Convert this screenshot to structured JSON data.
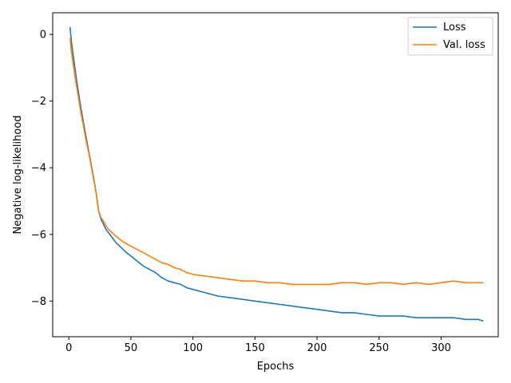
{
  "chart_data": {
    "type": "line",
    "xlabel": "Epochs",
    "ylabel": "Negative log-likelihood",
    "xlim": [
      -13,
      346
    ],
    "ylim": [
      -9.07,
      0.65
    ],
    "xticks": [
      0,
      50,
      100,
      150,
      200,
      250,
      300
    ],
    "yticks": [
      0,
      -2,
      -4,
      -6,
      -8
    ],
    "ytick_labels": [
      "0",
      "−2",
      "−4",
      "−6",
      "−8"
    ],
    "grid": false,
    "legend_position": "top-right",
    "series": [
      {
        "name": "Loss",
        "color": "#1f77b4",
        "x": [
          1,
          2,
          4,
          6,
          8,
          10,
          12,
          14,
          16,
          18,
          20,
          22,
          24,
          26,
          28,
          30,
          32,
          35,
          38,
          41,
          45,
          50,
          55,
          60,
          65,
          70,
          75,
          80,
          85,
          90,
          95,
          100,
          110,
          120,
          130,
          140,
          150,
          160,
          170,
          180,
          190,
          200,
          210,
          220,
          230,
          240,
          250,
          260,
          270,
          280,
          290,
          300,
          310,
          320,
          330,
          334
        ],
        "y": [
          0.22,
          -0.2,
          -0.75,
          -1.3,
          -1.8,
          -2.25,
          -2.7,
          -3.1,
          -3.5,
          -3.9,
          -4.3,
          -4.75,
          -5.3,
          -5.55,
          -5.7,
          -5.85,
          -5.95,
          -6.1,
          -6.25,
          -6.35,
          -6.5,
          -6.65,
          -6.8,
          -6.95,
          -7.05,
          -7.15,
          -7.3,
          -7.4,
          -7.45,
          -7.5,
          -7.6,
          -7.65,
          -7.75,
          -7.85,
          -7.9,
          -7.95,
          -8.0,
          -8.05,
          -8.1,
          -8.15,
          -8.2,
          -8.25,
          -8.3,
          -8.35,
          -8.35,
          -8.4,
          -8.45,
          -8.45,
          -8.45,
          -8.5,
          -8.5,
          -8.5,
          -8.5,
          -8.55,
          -8.55,
          -8.6
        ]
      },
      {
        "name": "Val. loss",
        "color": "#ff7f0e",
        "x": [
          1,
          2,
          4,
          6,
          8,
          10,
          12,
          14,
          16,
          18,
          20,
          22,
          24,
          26,
          28,
          30,
          32,
          35,
          38,
          41,
          45,
          50,
          55,
          60,
          65,
          70,
          75,
          80,
          85,
          90,
          95,
          100,
          110,
          120,
          130,
          140,
          150,
          160,
          170,
          180,
          190,
          200,
          210,
          220,
          230,
          240,
          250,
          260,
          270,
          280,
          290,
          300,
          310,
          320,
          330,
          334
        ],
        "y": [
          -0.1,
          -0.5,
          -1.0,
          -1.5,
          -1.95,
          -2.4,
          -2.8,
          -3.2,
          -3.55,
          -3.95,
          -4.35,
          -4.75,
          -5.3,
          -5.5,
          -5.6,
          -5.75,
          -5.85,
          -5.95,
          -6.05,
          -6.15,
          -6.25,
          -6.35,
          -6.45,
          -6.55,
          -6.65,
          -6.75,
          -6.85,
          -6.9,
          -7.0,
          -7.05,
          -7.15,
          -7.2,
          -7.25,
          -7.3,
          -7.35,
          -7.4,
          -7.4,
          -7.45,
          -7.45,
          -7.5,
          -7.5,
          -7.5,
          -7.5,
          -7.45,
          -7.45,
          -7.5,
          -7.45,
          -7.45,
          -7.5,
          -7.45,
          -7.5,
          -7.45,
          -7.4,
          -7.45,
          -7.45,
          -7.45
        ]
      }
    ]
  }
}
